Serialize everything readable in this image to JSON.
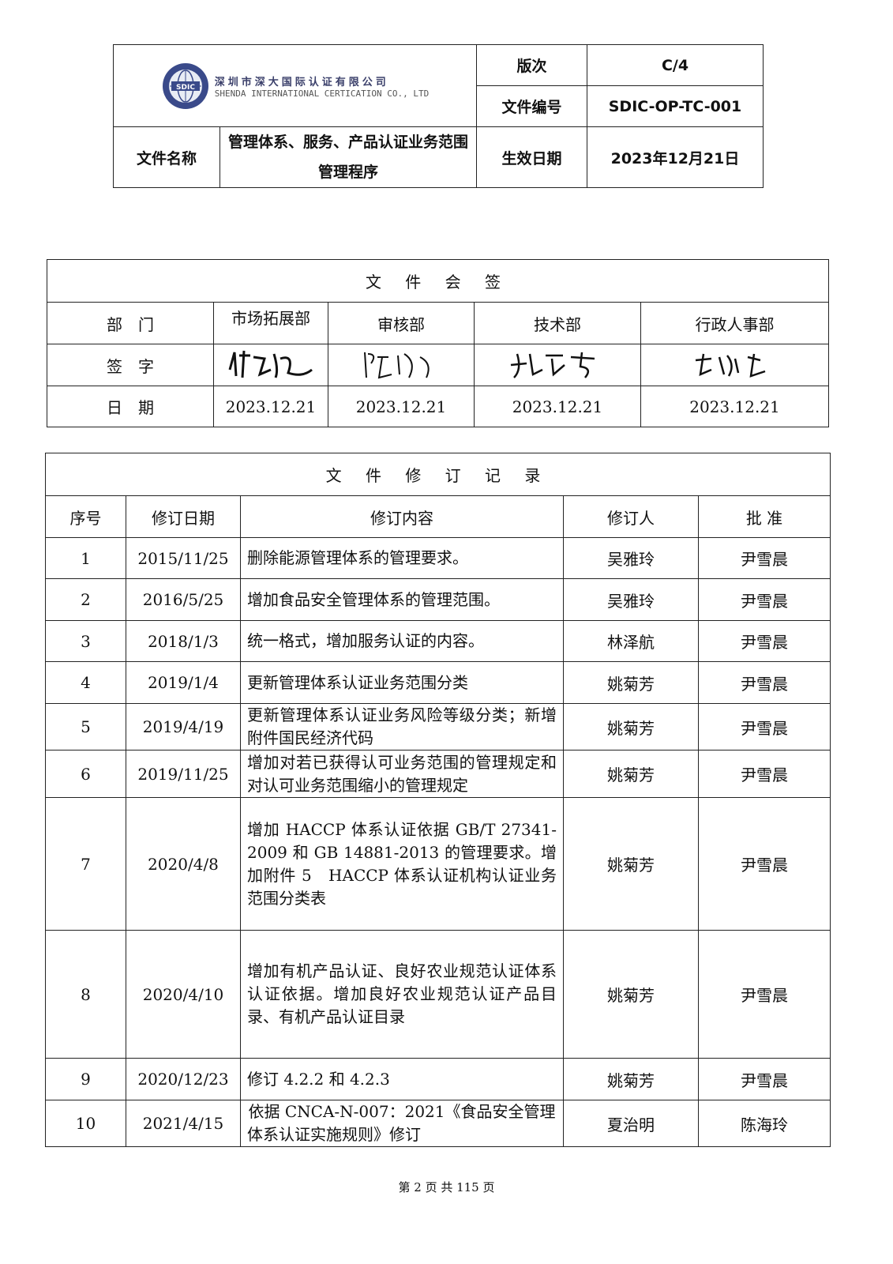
{
  "header": {
    "company_cn": "深圳市深大国际认证有限公司",
    "company_en": "SHENDA INTERNATIONAL CERTICATION CO., LTD",
    "logo_text": "SDIC",
    "version_label": "版次",
    "version_value": "C/4",
    "doc_no_label": "文件编号",
    "doc_no_value": "SDIC-OP-TC-001",
    "doc_name_label": "文件名称",
    "doc_name_value": "管理体系、服务、产品认证业务范围管理程序",
    "effective_label": "生效日期",
    "effective_value": "2023年12月21日"
  },
  "countersign": {
    "title": "文 件 会 签",
    "dept_label": "部　门",
    "sign_label": "签　字",
    "date_label": "日　期",
    "departments": [
      "市场拓展部",
      "审核部",
      "技术部",
      "行政人事部"
    ],
    "dates": [
      "2023.12.21",
      "2023.12.21",
      "2023.12.21",
      "2023.12.21"
    ]
  },
  "revisions": {
    "title": "文 件 修 订 记 录",
    "headers": [
      "序号",
      "修订日期",
      "修订内容",
      "修订人",
      "批 准"
    ],
    "rows": [
      {
        "no": "1",
        "date": "2015/11/25",
        "content": "删除能源管理体系的管理要求。",
        "reviser": "吴雅玲",
        "approver": "尹雪晨"
      },
      {
        "no": "2",
        "date": "2016/5/25",
        "content": "增加食品安全管理体系的管理范围。",
        "reviser": "吴雅玲",
        "approver": "尹雪晨"
      },
      {
        "no": "3",
        "date": "2018/1/3",
        "content": "统一格式，增加服务认证的内容。",
        "reviser": "林泽航",
        "approver": "尹雪晨"
      },
      {
        "no": "4",
        "date": "2019/1/4",
        "content": "更新管理体系认证业务范围分类",
        "reviser": "姚菊芳",
        "approver": "尹雪晨"
      },
      {
        "no": "5",
        "date": "2019/4/19",
        "content": "更新管理体系认证业务风险等级分类；新增附件国民经济代码",
        "reviser": "姚菊芳",
        "approver": "尹雪晨"
      },
      {
        "no": "6",
        "date": "2019/11/25",
        "content": "增加对若已获得认可业务范围的管理规定和对认可业务范围缩小的管理规定",
        "reviser": "姚菊芳",
        "approver": "尹雪晨"
      },
      {
        "no": "7",
        "date": "2020/4/8",
        "content": "增加 HACCP 体系认证依据 GB/T 27341-2009 和 GB 14881-2013 的管理要求。增加附件 5　HACCP 体系认证机构认证业务范围分类表",
        "reviser": "姚菊芳",
        "approver": "尹雪晨"
      },
      {
        "no": "8",
        "date": "2020/4/10",
        "content": "增加有机产品认证、良好农业规范认证体系认证依据。增加良好农业规范认证产品目录、有机产品认证目录",
        "reviser": "姚菊芳",
        "approver": "尹雪晨"
      },
      {
        "no": "9",
        "date": "2020/12/23",
        "content": "修订 4.2.2 和 4.2.3",
        "reviser": "姚菊芳",
        "approver": "尹雪晨"
      },
      {
        "no": "10",
        "date": "2021/4/15",
        "content": "依据 CNCA-N-007：2021《食品安全管理体系认证实施规则》修订",
        "reviser": "夏治明",
        "approver": "陈海玲"
      }
    ]
  },
  "footer": "第 2 页 共 115 页",
  "colors": {
    "logo_blue": "#3a4a8a"
  }
}
